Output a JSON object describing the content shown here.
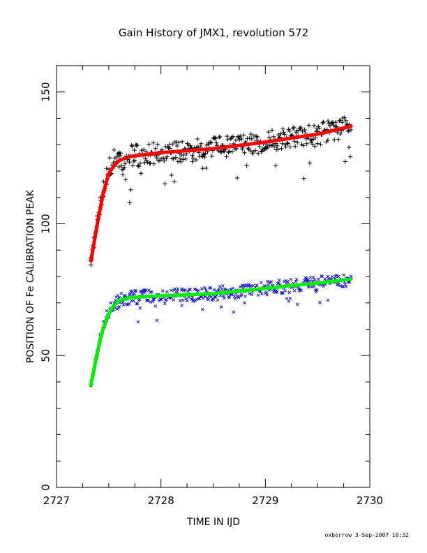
{
  "chart_data": {
    "type": "scatter",
    "title": "Gain History of JMX1, revolution 572",
    "xlabel": "TIME IN IJD",
    "ylabel": "POSITION OF Fe CALIBRATION PEAK",
    "xlim": [
      2727,
      2730
    ],
    "ylim": [
      0,
      160
    ],
    "x_ticks": [
      "2727",
      "2728",
      "2729",
      "2730"
    ],
    "y_ticks": [
      "0",
      "50",
      "100",
      "150"
    ],
    "grid": false,
    "legend": "none",
    "series": [
      {
        "marker": "plus",
        "color": "#000000",
        "x_range": [
          2727.33,
          2729.82
        ],
        "points": [
          [
            2727.33,
            87
          ],
          [
            2727.36,
            95
          ],
          [
            2727.39,
            103
          ],
          [
            2727.42,
            110
          ],
          [
            2727.45,
            116
          ],
          [
            2727.48,
            121
          ],
          [
            2727.51,
            125
          ],
          [
            2727.55,
            128
          ],
          [
            2727.6,
            127
          ],
          [
            2727.7,
            108
          ],
          [
            2727.75,
            124
          ],
          [
            2727.9,
            126
          ],
          [
            2728.1,
            127
          ],
          [
            2728.3,
            126
          ],
          [
            2728.4,
            121
          ],
          [
            2728.6,
            128
          ],
          [
            2728.8,
            130
          ],
          [
            2729.0,
            131
          ],
          [
            2729.1,
            122
          ],
          [
            2729.3,
            133
          ],
          [
            2729.5,
            135
          ],
          [
            2729.6,
            139
          ],
          [
            2729.7,
            132
          ],
          [
            2729.8,
            129
          ]
        ]
      },
      {
        "marker": "x",
        "color": "#0000cc",
        "x_range": [
          2727.33,
          2729.82
        ],
        "points": [
          [
            2727.33,
            40
          ],
          [
            2727.36,
            45
          ],
          [
            2727.39,
            52
          ],
          [
            2727.42,
            58
          ],
          [
            2727.45,
            63
          ],
          [
            2727.48,
            67
          ],
          [
            2727.52,
            70
          ],
          [
            2727.6,
            72
          ],
          [
            2727.7,
            73
          ],
          [
            2727.8,
            68
          ],
          [
            2727.9,
            74
          ],
          [
            2728.1,
            72
          ],
          [
            2728.2,
            69
          ],
          [
            2728.4,
            73
          ],
          [
            2728.6,
            74
          ],
          [
            2728.8,
            70
          ],
          [
            2729.0,
            76
          ],
          [
            2729.2,
            77
          ],
          [
            2729.4,
            78
          ],
          [
            2729.6,
            71
          ],
          [
            2729.7,
            80
          ],
          [
            2729.8,
            78
          ]
        ]
      },
      {
        "type": "line",
        "color": "#ff0000",
        "x": [
          2727.33,
          2727.4,
          2727.45,
          2727.5,
          2727.55,
          2727.6,
          2727.7,
          2727.8,
          2728.0,
          2728.5,
          2729.0,
          2729.5,
          2729.82
        ],
        "values": [
          86,
          102,
          112,
          119,
          122,
          124,
          125.5,
          126,
          127,
          128.5,
          131,
          134,
          137
        ]
      },
      {
        "type": "line",
        "color": "#00ee00",
        "x": [
          2727.33,
          2727.38,
          2727.43,
          2727.48,
          2727.53,
          2727.6,
          2727.7,
          2727.9,
          2728.5,
          2729.0,
          2729.5,
          2729.82
        ],
        "values": [
          39,
          49,
          58,
          64,
          68,
          71,
          72,
          72.5,
          73.5,
          75.5,
          77.5,
          79
        ]
      }
    ]
  },
  "footer": {
    "signature": "oxborrow  3-Sep-2007 10:32"
  },
  "colors": {
    "axis": "#000000",
    "plus_points": "#000000",
    "x_points": "#0000cc",
    "upper_fit": "#ff0000",
    "lower_fit": "#00ee00"
  }
}
